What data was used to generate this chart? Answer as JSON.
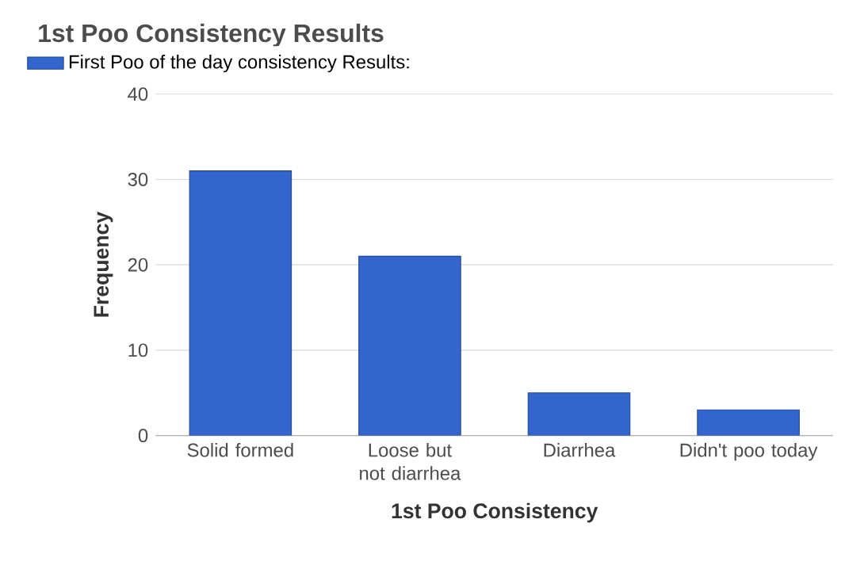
{
  "chart_data": {
    "type": "bar",
    "title": "1st Poo Consistency Results",
    "xlabel": "1st Poo Consistency",
    "ylabel": "Frequency",
    "categories": [
      "Solid formed",
      "Loose but not diarrhea",
      "Diarrhea",
      "Didn't poo today"
    ],
    "series": [
      {
        "name": "First Poo of the day consistency Results:",
        "color": "#3366cc",
        "values": [
          31,
          21,
          5,
          3
        ]
      }
    ],
    "ylim": [
      0,
      40
    ],
    "yticks": [
      0,
      10,
      20,
      30,
      40
    ],
    "grid": "y",
    "legend": "top"
  }
}
